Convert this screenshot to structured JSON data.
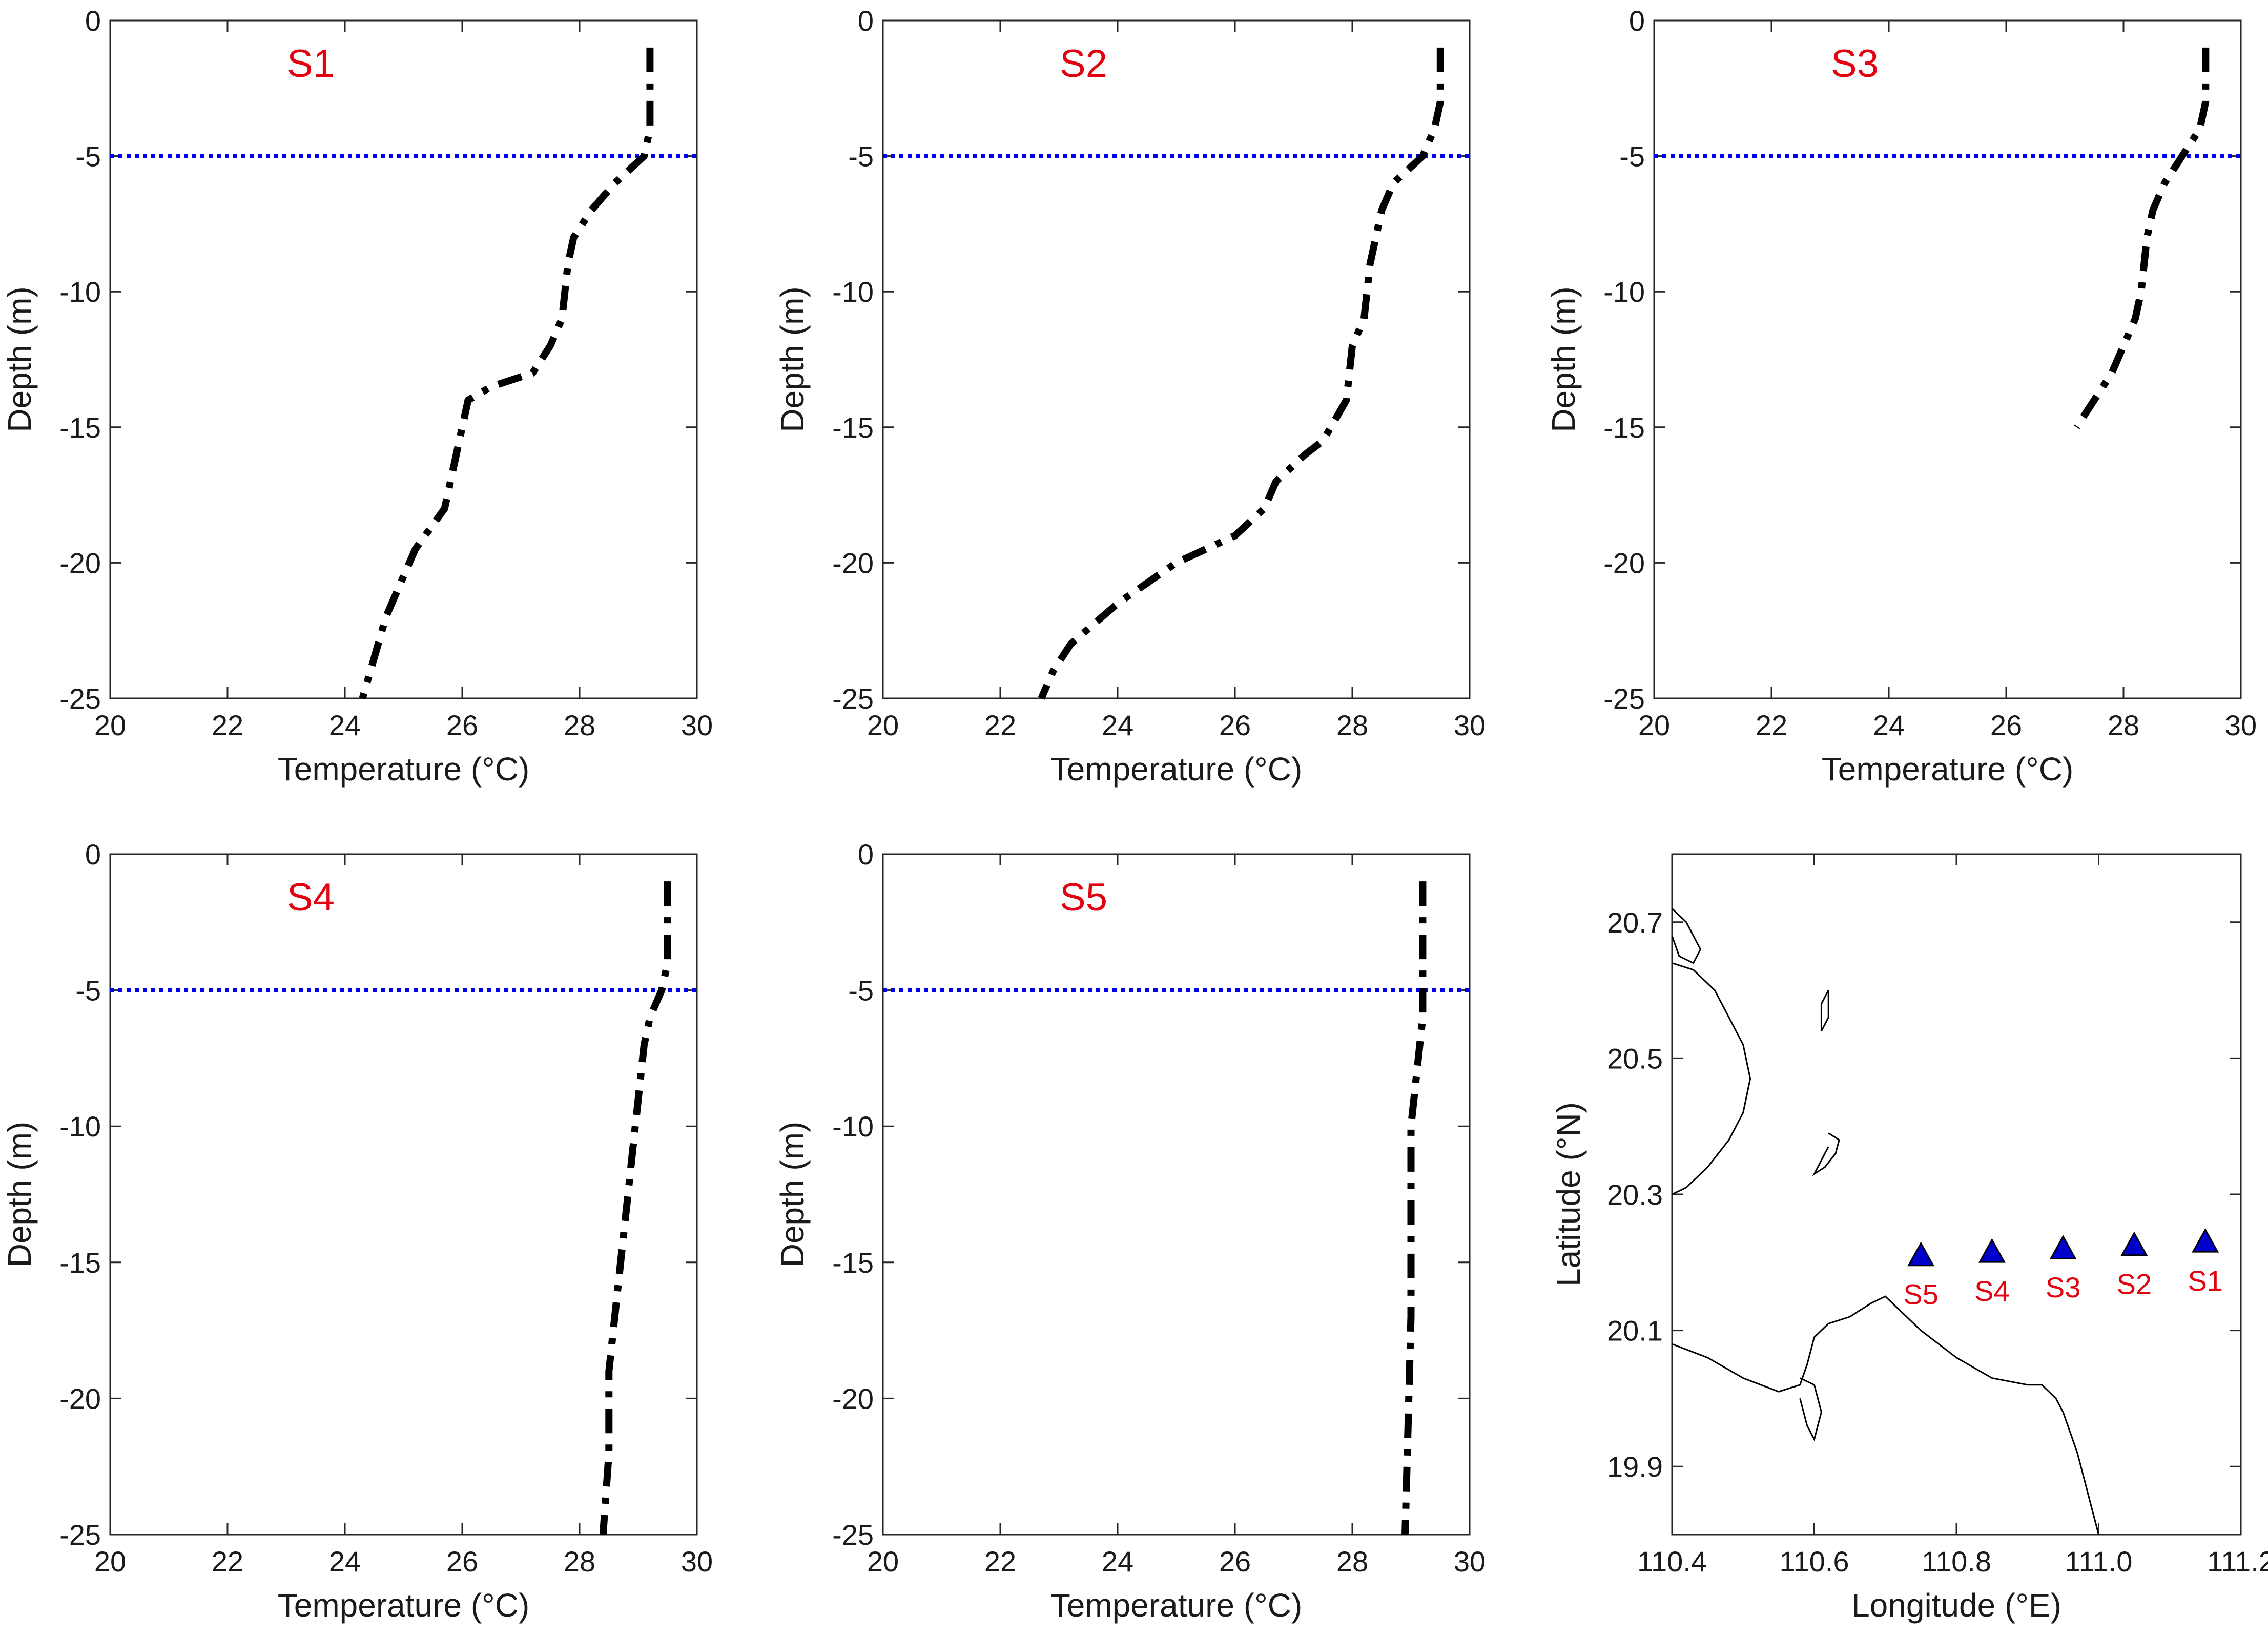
{
  "colors": {
    "profile": "#000000",
    "mixed_layer_line": "#0000ee",
    "panel_label": "#e3000f",
    "station_marker": "#0000cc",
    "coastline": "#000000"
  },
  "chart_data": [
    {
      "type": "line",
      "panel": "S1",
      "xlabel": "Temperature (°C)",
      "ylabel": "Depth (m)",
      "xlim": [
        20,
        30
      ],
      "ylim": [
        -25,
        0
      ],
      "xticks": [
        "20",
        "22",
        "24",
        "26",
        "28",
        "30"
      ],
      "yticks": [
        "0",
        "-5",
        "-10",
        "-15",
        "-20",
        "-25"
      ],
      "reference_line_y": -5,
      "series": [
        {
          "style": "dash-dot",
          "x": [
            29.2,
            29.2,
            29.2,
            29.1,
            28.6,
            28.2,
            27.9,
            27.8,
            27.7,
            27.5,
            27.2,
            26.5,
            26.1,
            26.0,
            25.9,
            25.7,
            25.2,
            24.9,
            24.7,
            24.5,
            24.3
          ],
          "y": [
            -1,
            -2,
            -4,
            -5,
            -6,
            -7,
            -8,
            -9,
            -11,
            -12,
            -13,
            -13.5,
            -14,
            -15,
            -16,
            -18,
            -19.5,
            -21,
            -22,
            -23.5,
            -25
          ]
        }
      ]
    },
    {
      "type": "line",
      "panel": "S2",
      "xlabel": "Temperature (°C)",
      "ylabel": "Depth (m)",
      "xlim": [
        20,
        30
      ],
      "ylim": [
        -25,
        0
      ],
      "xticks": [
        "20",
        "22",
        "24",
        "26",
        "28",
        "30"
      ],
      "yticks": [
        "0",
        "-5",
        "-10",
        "-15",
        "-20",
        "-25"
      ],
      "reference_line_y": -5,
      "series": [
        {
          "style": "dash-dot",
          "x": [
            29.5,
            29.5,
            29.4,
            29.2,
            28.7,
            28.5,
            28.3,
            28.2,
            28.0,
            27.9,
            27.5,
            27.2,
            26.7,
            26.5,
            26.0,
            25.0,
            24.0,
            23.2,
            22.9,
            22.7
          ],
          "y": [
            -1,
            -3,
            -4,
            -5,
            -6,
            -7,
            -9,
            -11,
            -12,
            -14,
            -15.5,
            -16,
            -17,
            -18,
            -19,
            -20,
            -21.5,
            -23,
            -24,
            -25
          ]
        }
      ]
    },
    {
      "type": "line",
      "panel": "S3",
      "xlabel": "Temperature (°C)",
      "ylabel": "Depth (m)",
      "xlim": [
        20,
        30
      ],
      "ylim": [
        -25,
        0
      ],
      "xticks": [
        "20",
        "22",
        "24",
        "26",
        "28",
        "30"
      ],
      "yticks": [
        "0",
        "-5",
        "-10",
        "-15",
        "-20",
        "-25"
      ],
      "reference_line_y": -5,
      "series": [
        {
          "style": "dash-dot",
          "x": [
            29.4,
            29.4,
            29.3,
            29.0,
            28.7,
            28.5,
            28.4,
            28.3,
            28.2,
            28.0,
            27.8,
            27.5,
            27.2
          ],
          "y": [
            -1,
            -3,
            -4,
            -5,
            -6,
            -7,
            -8,
            -10,
            -11,
            -12,
            -13,
            -14,
            -15
          ]
        }
      ]
    },
    {
      "type": "line",
      "panel": "S4",
      "xlabel": "Temperature (°C)",
      "ylabel": "Depth (m)",
      "xlim": [
        20,
        30
      ],
      "ylim": [
        -25,
        0
      ],
      "xticks": [
        "20",
        "22",
        "24",
        "26",
        "28",
        "30"
      ],
      "yticks": [
        "0",
        "-5",
        "-10",
        "-15",
        "-20",
        "-25"
      ],
      "reference_line_y": -5,
      "series": [
        {
          "style": "dash-dot",
          "x": [
            29.5,
            29.5,
            29.5,
            29.4,
            29.2,
            29.1,
            29.0,
            28.9,
            28.8,
            28.7,
            28.6,
            28.5,
            28.5,
            28.4
          ],
          "y": [
            -1,
            -2,
            -4,
            -5,
            -6,
            -7,
            -9,
            -11,
            -13,
            -15,
            -17,
            -19,
            -22,
            -25
          ]
        }
      ]
    },
    {
      "type": "line",
      "panel": "S5",
      "xlabel": "Temperature (°C)",
      "ylabel": "Depth (m)",
      "xlim": [
        20,
        30
      ],
      "ylim": [
        -25,
        0
      ],
      "xticks": [
        "20",
        "22",
        "24",
        "26",
        "28",
        "30"
      ],
      "yticks": [
        "0",
        "-5",
        "-10",
        "-15",
        "-20",
        "-25"
      ],
      "reference_line_y": -5,
      "series": [
        {
          "style": "dash-dot",
          "x": [
            29.2,
            29.2,
            29.2,
            29.2,
            29.1,
            29.0,
            29.0,
            29.0,
            28.95,
            28.9
          ],
          "y": [
            -1,
            -2,
            -4,
            -6,
            -8,
            -10,
            -13,
            -17,
            -21,
            -25
          ]
        }
      ]
    },
    {
      "type": "scatter",
      "panel": "map",
      "xlabel": "Longitude (°E)",
      "ylabel": "Latitude (°N)",
      "xlim": [
        110.4,
        111.2
      ],
      "ylim": [
        19.8,
        20.8
      ],
      "xticks": [
        "110.4",
        "110.6",
        "110.8",
        "111.0",
        "111.2"
      ],
      "yticks": [
        "20.7",
        "20.5",
        "20.3",
        "20.1",
        "19.9"
      ],
      "stations": [
        {
          "name": "S5",
          "lon": 110.75,
          "lat": 20.21
        },
        {
          "name": "S4",
          "lon": 110.85,
          "lat": 20.215
        },
        {
          "name": "S3",
          "lon": 110.95,
          "lat": 20.22
        },
        {
          "name": "S2",
          "lon": 111.05,
          "lat": 20.225
        },
        {
          "name": "S1",
          "lon": 111.15,
          "lat": 20.23
        }
      ],
      "coastlines": [
        {
          "lon": [
            110.4,
            110.43,
            110.46,
            110.48,
            110.5,
            110.51,
            110.5,
            110.48,
            110.45,
            110.42,
            110.4
          ],
          "lat": [
            20.64,
            20.63,
            20.6,
            20.56,
            20.52,
            20.47,
            20.42,
            20.38,
            20.34,
            20.31,
            20.3
          ]
        },
        {
          "lon": [
            110.4,
            110.42,
            110.43,
            110.44,
            110.43,
            110.41,
            110.4
          ],
          "lat": [
            20.72,
            20.7,
            20.68,
            20.66,
            20.64,
            20.65,
            20.68
          ]
        },
        {
          "lon": [
            110.4,
            110.45,
            110.5,
            110.55,
            110.58,
            110.59,
            110.6,
            110.62,
            110.65,
            110.68,
            110.7,
            110.72,
            110.75,
            110.8,
            110.85,
            110.9,
            110.92,
            110.93,
            110.94,
            110.95,
            110.96,
            110.97,
            110.98,
            110.99,
            111.0
          ],
          "lat": [
            20.08,
            20.06,
            20.03,
            20.01,
            20.02,
            20.05,
            20.09,
            20.11,
            20.12,
            20.14,
            20.15,
            20.13,
            20.1,
            20.06,
            20.03,
            20.02,
            20.02,
            20.01,
            20.0,
            19.98,
            19.95,
            19.92,
            19.88,
            19.84,
            19.8
          ]
        },
        {
          "lon": [
            110.58,
            110.6,
            110.61,
            110.6,
            110.59,
            110.58
          ],
          "lat": [
            20.03,
            20.02,
            19.98,
            19.94,
            19.96,
            20.0
          ]
        },
        {
          "lon": [
            110.61,
            110.62,
            110.62,
            110.61,
            110.61
          ],
          "lat": [
            20.58,
            20.6,
            20.56,
            20.54,
            20.58
          ]
        },
        {
          "lon": [
            110.62,
            110.635,
            110.63,
            110.615,
            110.6,
            110.62
          ],
          "lat": [
            20.39,
            20.38,
            20.36,
            20.34,
            20.33,
            20.37
          ]
        }
      ]
    }
  ],
  "labels": {
    "panel_names": [
      "S1",
      "S2",
      "S3",
      "S4",
      "S5"
    ],
    "xlabel_profiles": "Temperature (°C)",
    "ylabel_profiles": "Depth (m)",
    "xlabel_map": "Longitude (°E)",
    "ylabel_map": "Latitude (°N)"
  }
}
